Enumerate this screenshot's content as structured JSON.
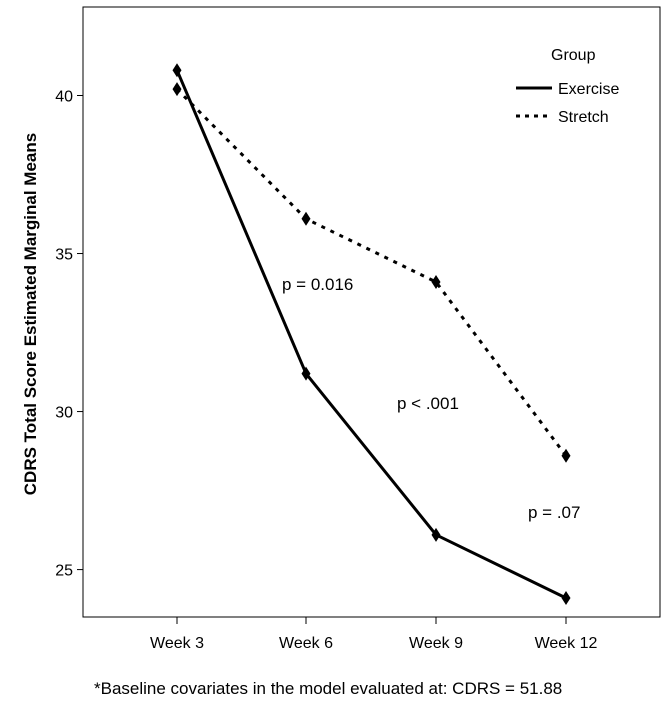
{
  "chart_data": {
    "type": "line",
    "ylabel": "CDRS Total Score Estimated Marginal Means",
    "xlabel": "",
    "categories": [
      "Week 3",
      "Week 6",
      "Week 9",
      "Week 12"
    ],
    "ylim": [
      23.5,
      42.8
    ],
    "yticks": [
      25,
      30,
      35,
      40
    ],
    "grid": false,
    "legend": {
      "title": "Group",
      "placement": "top-right",
      "entries": [
        "Exercise",
        "Stretch"
      ]
    },
    "series": [
      {
        "name": "Exercise",
        "style": "solid",
        "color": "#000000",
        "values": [
          40.8,
          31.2,
          26.1,
          24.1
        ]
      },
      {
        "name": "Stretch",
        "style": "dotted",
        "color": "#000000",
        "values": [
          40.2,
          36.1,
          34.1,
          28.6
        ]
      }
    ],
    "annotations": [
      {
        "text": "p = 0.016"
      },
      {
        "text": "p < .001"
      },
      {
        "text": "p = .07"
      }
    ],
    "footnote": "*Baseline covariates in the model evaluated at: CDRS = 51.88"
  }
}
